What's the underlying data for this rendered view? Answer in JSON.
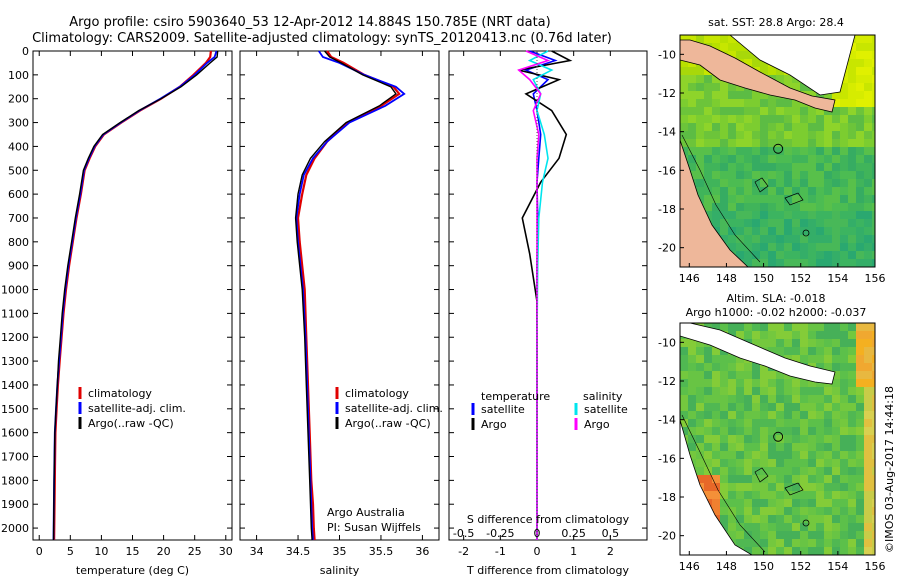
{
  "header": {
    "line1": "Argo profile: csiro 5903640_53 12-Apr-2012 14.884S 150.785E (NRT data)",
    "line2": "Climatology: CARS2009. Satellite-adjusted climatology: synTS_20120413.nc (0.76d later)"
  },
  "colors": {
    "climatology": "#e00000",
    "satellite": "#0000ff",
    "argo": "#000000",
    "sal_satellite": "#00e5ee",
    "sal_argo": "#ff00ff"
  },
  "chart_data": [
    {
      "type": "line",
      "id": "temperature",
      "xlabel": "temperature (deg C)",
      "ylabel": "",
      "xlim": [
        -1,
        31
      ],
      "ylim": [
        2050,
        0
      ],
      "xticks": [
        0,
        5,
        10,
        15,
        20,
        25,
        30
      ],
      "yticks": [
        0,
        100,
        200,
        300,
        400,
        500,
        600,
        700,
        800,
        900,
        1000,
        1100,
        1200,
        1300,
        1400,
        1500,
        1600,
        1700,
        1800,
        1900,
        2000
      ],
      "legend": [
        "climatology",
        "satellite-adj. clim.",
        "Argo(..raw -QC)"
      ],
      "series": [
        {
          "name": "climatology",
          "color": "#e00000",
          "x": [
            27.6,
            27.5,
            26.8,
            24.8,
            22.6,
            19.6,
            16.2,
            13.2,
            10.4,
            9.0,
            8.1,
            7.3,
            6.7,
            6.0,
            5.4,
            4.8,
            4.3,
            3.9,
            3.6,
            3.3,
            3.0,
            2.8,
            2.6,
            2.5,
            2.4
          ],
          "y": [
            0,
            25,
            50,
            100,
            150,
            200,
            250,
            300,
            350,
            400,
            450,
            500,
            600,
            700,
            800,
            900,
            1000,
            1100,
            1200,
            1300,
            1400,
            1500,
            1600,
            1800,
            2050
          ]
        },
        {
          "name": "satellite-adj. clim.",
          "color": "#0000ff",
          "x": [
            28.5,
            28.2,
            27.0,
            25.0,
            22.6,
            19.5,
            16.1,
            13.1,
            10.3,
            8.9,
            8.0,
            7.2,
            6.6,
            5.9,
            5.3,
            4.7,
            4.2,
            3.8,
            3.5,
            3.2,
            2.9,
            2.7,
            2.5,
            2.4,
            2.3
          ],
          "y": [
            0,
            25,
            50,
            100,
            150,
            200,
            250,
            300,
            350,
            400,
            450,
            500,
            600,
            700,
            800,
            900,
            1000,
            1100,
            1200,
            1300,
            1400,
            1500,
            1600,
            1800,
            2050
          ]
        },
        {
          "name": "Argo(..raw -QC)",
          "color": "#000000",
          "x": [
            28.7,
            28.6,
            27.5,
            25.3,
            22.8,
            19.6,
            16.0,
            13.0,
            10.2,
            8.8,
            7.9,
            7.1,
            6.5,
            5.8,
            5.2,
            4.6,
            4.1,
            3.7,
            3.4,
            3.1,
            2.9,
            2.7,
            2.5,
            2.4,
            2.3
          ],
          "y": [
            0,
            25,
            50,
            100,
            150,
            200,
            250,
            300,
            350,
            400,
            450,
            500,
            600,
            700,
            800,
            900,
            1000,
            1100,
            1200,
            1300,
            1400,
            1500,
            1600,
            1800,
            2050
          ]
        }
      ]
    },
    {
      "type": "line",
      "id": "salinity",
      "xlabel": "salinity",
      "ylabel": "",
      "xlim": [
        33.8,
        36.2
      ],
      "ylim": [
        2050,
        0
      ],
      "xticks": [
        34,
        34.5,
        35,
        35.5,
        36
      ],
      "legend": [
        "climatology",
        "satellite-adj. clim.",
        "Argo(..raw -QC)"
      ],
      "annotations": [
        "Argo Australia",
        "PI: Susan Wijffels"
      ],
      "series": [
        {
          "name": "climatology",
          "color": "#e00000",
          "x": [
            34.85,
            34.9,
            35.05,
            35.3,
            35.65,
            35.72,
            35.5,
            35.1,
            34.85,
            34.7,
            34.6,
            34.55,
            34.5,
            34.52,
            34.55,
            34.58,
            34.6,
            34.62,
            34.64,
            34.66,
            34.68,
            34.69,
            34.7
          ],
          "y": [
            0,
            25,
            50,
            100,
            150,
            180,
            230,
            300,
            380,
            450,
            520,
            600,
            700,
            800,
            900,
            1000,
            1200,
            1400,
            1600,
            1800,
            1900,
            2000,
            2050
          ]
        },
        {
          "name": "satellite-adj. clim.",
          "color": "#0000ff",
          "x": [
            34.75,
            34.8,
            35.0,
            35.3,
            35.68,
            35.78,
            35.55,
            35.12,
            34.85,
            34.68,
            34.57,
            34.52,
            34.48,
            34.5,
            34.53,
            34.56,
            34.59,
            34.61,
            34.63,
            34.65,
            34.66,
            34.67,
            34.68
          ],
          "y": [
            0,
            25,
            50,
            100,
            150,
            180,
            230,
            300,
            380,
            450,
            520,
            600,
            700,
            800,
            900,
            1000,
            1200,
            1400,
            1600,
            1800,
            1900,
            2000,
            2050
          ]
        },
        {
          "name": "Argo(..raw -QC)",
          "color": "#000000",
          "x": [
            34.82,
            34.88,
            35.02,
            35.28,
            35.62,
            35.68,
            35.48,
            35.08,
            34.82,
            34.65,
            34.55,
            34.5,
            34.47,
            34.49,
            34.52,
            34.55,
            34.58,
            34.6,
            34.62,
            34.64,
            34.65,
            34.66,
            34.67
          ],
          "y": [
            0,
            25,
            50,
            100,
            150,
            180,
            230,
            300,
            380,
            450,
            520,
            600,
            700,
            800,
            900,
            1000,
            1200,
            1400,
            1600,
            1800,
            1900,
            2000,
            2050
          ]
        }
      ]
    },
    {
      "type": "line",
      "id": "difference",
      "xlabel": "T difference from climatology",
      "title_bottom": "S difference from climatology",
      "xlim": [
        -2.4,
        3.0
      ],
      "ylim": [
        2050,
        0
      ],
      "xticks": [
        -2,
        -1,
        0,
        1,
        2
      ],
      "top_xticks": [
        -0.5,
        -0.25,
        0,
        0.25,
        0.5
      ],
      "legend_groups": [
        "temperature",
        "salinity"
      ],
      "legend": [
        "satellite",
        "Argo",
        "satellite",
        "Argo"
      ],
      "series": [
        {
          "name": "T satellite",
          "color": "#0000ff",
          "x": [
            -0.2,
            0.5,
            -0.3,
            0.3,
            -0.1,
            0.0,
            0.1,
            0.05,
            0.0,
            0.02,
            0.0,
            0.0,
            0.0
          ],
          "y": [
            0,
            40,
            80,
            120,
            180,
            250,
            350,
            450,
            550,
            700,
            900,
            1200,
            2050
          ]
        },
        {
          "name": "T Argo",
          "color": "#000000",
          "x": [
            0.4,
            0.9,
            -0.5,
            0.6,
            -0.3,
            0.4,
            0.8,
            0.6,
            0.1,
            -0.4,
            -0.2,
            0.0,
            0.0
          ],
          "y": [
            0,
            40,
            80,
            120,
            180,
            250,
            350,
            450,
            550,
            700,
            850,
            1050,
            2050
          ]
        },
        {
          "name": "S satellite",
          "color": "#00e5ee",
          "x": [
            0.3,
            -0.2,
            0.4,
            -0.1,
            0.1,
            0.0,
            0.2,
            0.3,
            0.15,
            0.05,
            0.02,
            0.0,
            0.0
          ],
          "y": [
            0,
            40,
            80,
            120,
            180,
            250,
            350,
            450,
            550,
            700,
            900,
            1200,
            2050
          ]
        },
        {
          "name": "S Argo",
          "color": "#ff00ff",
          "x": [
            -0.3,
            0.3,
            -0.5,
            -0.2,
            0.1,
            -0.1,
            0.05,
            0.0,
            0.0,
            0.0,
            0.0,
            0.0,
            0.0
          ],
          "y": [
            0,
            40,
            80,
            120,
            180,
            250,
            350,
            450,
            550,
            700,
            900,
            1200,
            2050
          ]
        }
      ]
    },
    {
      "type": "heatmap",
      "id": "sst-map",
      "title": "sat. SST: 28.8  Argo: 28.4",
      "xlim": [
        145.5,
        156
      ],
      "ylim": [
        -21,
        -9
      ],
      "xticks": [
        146,
        148,
        150,
        152,
        154,
        156
      ],
      "yticks": [
        -10,
        -12,
        -14,
        -16,
        -18,
        -20
      ],
      "float_position": [
        150.785,
        -14.884
      ]
    },
    {
      "type": "heatmap",
      "id": "sla-map",
      "title": "Altim. SLA: -0.018",
      "subtitle": "Argo h1000: -0.02 h2000: -0.037",
      "xlim": [
        145.5,
        156
      ],
      "ylim": [
        -21,
        -9
      ],
      "xticks": [
        146,
        148,
        150,
        152,
        154,
        156
      ],
      "yticks": [
        -10,
        -12,
        -14,
        -16,
        -18,
        -20
      ],
      "float_position": [
        150.785,
        -14.884
      ]
    }
  ],
  "footer": {
    "stamp": "©IMOS 03-Aug-2017 14:44:18"
  }
}
